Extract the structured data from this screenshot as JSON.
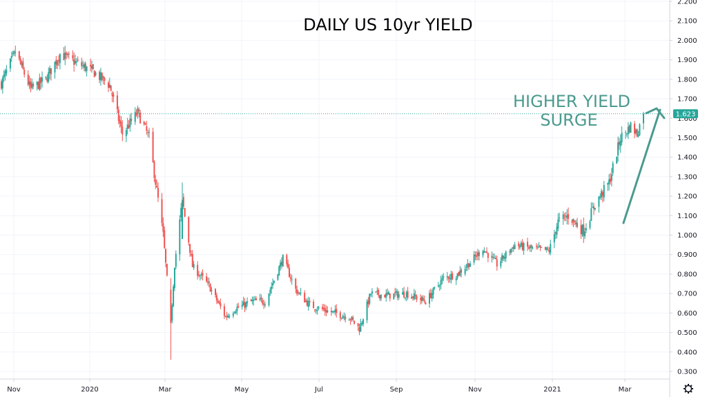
{
  "colors": {
    "up": "#26a69a",
    "down": "#ef5350",
    "grid": "#f0f3fa",
    "axis": "#d1d4dc",
    "annotation": "#4a9a8f",
    "price_line": "#26a69a"
  },
  "icons": {
    "settings": "gear-icon"
  },
  "chart_data": {
    "type": "candlestick",
    "title": "DAILY US 10yr YIELD",
    "annotation": {
      "lines": [
        "HIGHER YIELD",
        "SURGE"
      ]
    },
    "current_price_label": "1.623",
    "current_price": 1.623,
    "yaxis_ticks": [
      "2.200",
      "2.100",
      "2.000",
      "1.900",
      "1.800",
      "1.700",
      "1.600",
      "1.500",
      "1.400",
      "1.300",
      "1.200",
      "1.100",
      "1.000",
      "0.900",
      "0.800",
      "0.700",
      "0.600",
      "0.500",
      "0.400",
      "0.300"
    ],
    "ylim": [
      0.27,
      2.2
    ],
    "xaxis_ticks": [
      "Nov",
      "2020",
      "Mar",
      "May",
      "Jul",
      "Sep",
      "Nov",
      "2021",
      "Mar"
    ],
    "grid": true,
    "series_outline": [
      [
        "2019-10-28",
        1.78
      ],
      [
        "2019-11-08",
        1.94
      ],
      [
        "2019-11-20",
        1.75
      ],
      [
        "2019-12-02",
        1.8
      ],
      [
        "2019-12-13",
        1.93
      ],
      [
        "2019-12-27",
        1.88
      ],
      [
        "2020-01-08",
        1.84
      ],
      [
        "2020-01-21",
        1.77
      ],
      [
        "2020-01-31",
        1.52
      ],
      [
        "2020-02-12",
        1.63
      ],
      [
        "2020-02-21",
        1.5
      ],
      [
        "2020-03-03",
        1.0
      ],
      [
        "2020-03-09",
        0.55
      ],
      [
        "2020-03-12",
        0.85
      ],
      [
        "2020-03-18",
        1.18
      ],
      [
        "2020-03-26",
        0.84
      ],
      [
        "2020-04-08",
        0.74
      ],
      [
        "2020-04-21",
        0.58
      ],
      [
        "2020-04-28",
        0.62
      ],
      [
        "2020-05-12",
        0.66
      ],
      [
        "2020-05-22",
        0.66
      ],
      [
        "2020-06-05",
        0.88
      ],
      [
        "2020-06-15",
        0.72
      ],
      [
        "2020-06-26",
        0.64
      ],
      [
        "2020-07-10",
        0.61
      ],
      [
        "2020-07-27",
        0.58
      ],
      [
        "2020-08-04",
        0.52
      ],
      [
        "2020-08-13",
        0.7
      ],
      [
        "2020-08-26",
        0.69
      ],
      [
        "2020-09-10",
        0.7
      ],
      [
        "2020-09-25",
        0.66
      ],
      [
        "2020-10-09",
        0.78
      ],
      [
        "2020-10-20",
        0.8
      ],
      [
        "2020-10-30",
        0.86
      ],
      [
        "2020-11-09",
        0.93
      ],
      [
        "2020-11-20",
        0.85
      ],
      [
        "2020-12-04",
        0.95
      ],
      [
        "2020-12-18",
        0.93
      ],
      [
        "2020-12-31",
        0.92
      ],
      [
        "2021-01-07",
        1.07
      ],
      [
        "2021-01-15",
        1.1
      ],
      [
        "2021-01-27",
        1.02
      ],
      [
        "2021-02-05",
        1.16
      ],
      [
        "2021-02-16",
        1.27
      ],
      [
        "2021-02-25",
        1.5
      ],
      [
        "2021-03-05",
        1.56
      ],
      [
        "2021-03-10",
        1.52
      ],
      [
        "2021-03-15",
        1.623
      ]
    ]
  }
}
